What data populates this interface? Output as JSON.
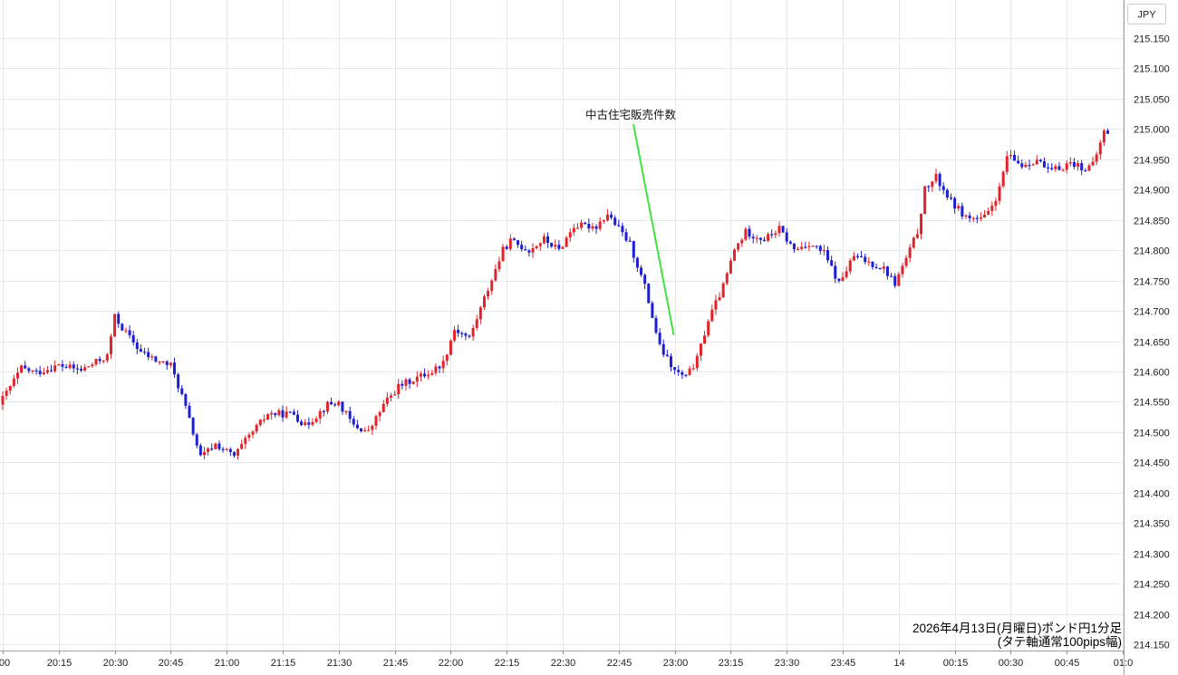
{
  "chart_data": {
    "type": "candlestick",
    "currency_label": "JPY",
    "y_range": [
      214.15,
      215.175
    ],
    "y_ticks": [
      "215.150",
      "215.100",
      "215.050",
      "215.000",
      "214.950",
      "214.900",
      "214.850",
      "214.800",
      "214.750",
      "214.700",
      "214.650",
      "214.600",
      "214.550",
      "214.500",
      "214.450",
      "214.400",
      "214.350",
      "214.300",
      "214.250",
      "214.200",
      "214.150"
    ],
    "x_ticks": [
      ":00",
      "20:15",
      "20:30",
      "20:45",
      "21:00",
      "21:15",
      "21:30",
      "21:45",
      "22:00",
      "22:15",
      "22:30",
      "22:45",
      "23:00",
      "23:15",
      "23:30",
      "23:45",
      "14",
      "00:15",
      "00:30",
      "00:45",
      "01:0"
    ],
    "x_tick_minutes": [
      0,
      15,
      30,
      45,
      60,
      75,
      90,
      105,
      120,
      135,
      150,
      165,
      180,
      195,
      210,
      225,
      240,
      255,
      270,
      285,
      300
    ],
    "up_color": "#e0242a",
    "down_color": "#1e1ed2",
    "annotation": {
      "label": "中古住宅販売件数",
      "time_minute": 180,
      "price": 214.66,
      "line_color": "#44e044"
    },
    "caption": [
      "2026年4月13日(月曜日)ポンド円1分足",
      "(タテ軸通常100pips幅)"
    ],
    "waypoints": [
      [
        0,
        214.545
      ],
      [
        3,
        214.575
      ],
      [
        6,
        214.605
      ],
      [
        10,
        214.598
      ],
      [
        16,
        214.61
      ],
      [
        22,
        214.602
      ],
      [
        29,
        214.625
      ],
      [
        31,
        214.69
      ],
      [
        33,
        214.672
      ],
      [
        38,
        214.632
      ],
      [
        42,
        214.618
      ],
      [
        46,
        214.61
      ],
      [
        49,
        214.56
      ],
      [
        54,
        214.458
      ],
      [
        58,
        214.48
      ],
      [
        63,
        214.46
      ],
      [
        66,
        214.485
      ],
      [
        72,
        214.53
      ],
      [
        79,
        214.53
      ],
      [
        82,
        214.51
      ],
      [
        88,
        214.545
      ],
      [
        91,
        214.548
      ],
      [
        95,
        214.51
      ],
      [
        99,
        214.5
      ],
      [
        103,
        214.545
      ],
      [
        107,
        214.575
      ],
      [
        112,
        214.59
      ],
      [
        116,
        214.6
      ],
      [
        119,
        214.615
      ],
      [
        122,
        214.67
      ],
      [
        126,
        214.655
      ],
      [
        130,
        214.72
      ],
      [
        135,
        214.8
      ],
      [
        137,
        214.815
      ],
      [
        142,
        214.8
      ],
      [
        146,
        214.818
      ],
      [
        150,
        214.8
      ],
      [
        154,
        214.84
      ],
      [
        160,
        214.84
      ],
      [
        163,
        214.86
      ],
      [
        169,
        214.81
      ],
      [
        173,
        214.74
      ],
      [
        177,
        214.64
      ],
      [
        181,
        214.6
      ],
      [
        184,
        214.59
      ],
      [
        187,
        214.62
      ],
      [
        190,
        214.685
      ],
      [
        194,
        214.74
      ],
      [
        197,
        214.8
      ],
      [
        200,
        214.83
      ],
      [
        205,
        214.818
      ],
      [
        209,
        214.835
      ],
      [
        213,
        214.8
      ],
      [
        217,
        214.812
      ],
      [
        221,
        214.795
      ],
      [
        225,
        214.745
      ],
      [
        229,
        214.79
      ],
      [
        233,
        214.78
      ],
      [
        237,
        214.77
      ],
      [
        240,
        214.745
      ],
      [
        244,
        214.8
      ],
      [
        246,
        214.83
      ],
      [
        248,
        214.9
      ],
      [
        251,
        214.92
      ],
      [
        255,
        214.88
      ],
      [
        259,
        214.855
      ],
      [
        263,
        214.85
      ],
      [
        265,
        214.86
      ],
      [
        268,
        214.9
      ],
      [
        270,
        214.955
      ],
      [
        274,
        214.94
      ],
      [
        278,
        214.95
      ],
      [
        281,
        214.93
      ],
      [
        284,
        214.935
      ],
      [
        287,
        214.945
      ],
      [
        291,
        214.935
      ],
      [
        293,
        214.94
      ],
      [
        296,
        214.995
      ]
    ]
  }
}
